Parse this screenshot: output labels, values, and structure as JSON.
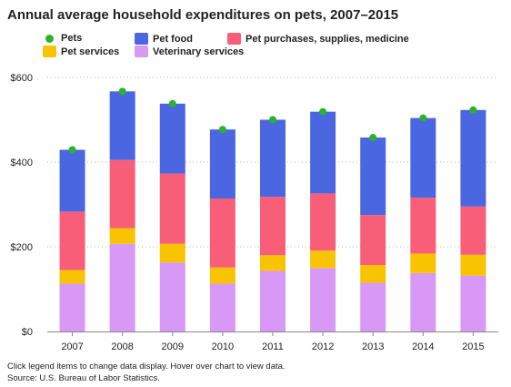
{
  "title": "Annual average household expenditures on pets, 2007–2015",
  "legend": [
    {
      "label": "Pets",
      "color": "#2bb32b",
      "marker": "dot"
    },
    {
      "label": "Pet food",
      "color": "#4a66e0",
      "marker": "square"
    },
    {
      "label": "Pet purchases, supplies, medicine",
      "color": "#f95e78",
      "marker": "square"
    },
    {
      "label": "Pet services",
      "color": "#f8c300",
      "marker": "square"
    },
    {
      "label": "Veterinary services",
      "color": "#d898f5",
      "marker": "square"
    }
  ],
  "footnotes": {
    "instructions": "Click legend items to change data display. Hover over chart to view data.",
    "source": "Source: U.S. Bureau of Labor Statistics."
  },
  "chart_data": {
    "type": "bar",
    "stacked": true,
    "categories": [
      "2007",
      "2008",
      "2009",
      "2010",
      "2011",
      "2012",
      "2013",
      "2014",
      "2015"
    ],
    "series": [
      {
        "name": "Veterinary services",
        "color": "#d898f5",
        "values": [
          113,
          207,
          163,
          113,
          143,
          150,
          115,
          138,
          132
        ]
      },
      {
        "name": "Pet services",
        "color": "#f8c300",
        "values": [
          32,
          37,
          44,
          38,
          37,
          41,
          42,
          46,
          49
        ]
      },
      {
        "name": "Pet purchases, supplies, medicine",
        "color": "#f95e78",
        "values": [
          138,
          161,
          166,
          163,
          138,
          135,
          118,
          132,
          114
        ]
      },
      {
        "name": "Pet food",
        "color": "#4a66e0",
        "values": [
          146,
          162,
          165,
          163,
          182,
          193,
          183,
          188,
          228
        ]
      }
    ],
    "line_series": {
      "name": "Pets",
      "color": "#2bb32b",
      "values": [
        429,
        567,
        538,
        477,
        500,
        519,
        458,
        504,
        523
      ]
    },
    "y_tick_labels": [
      "$0",
      "$200",
      "$400",
      "$600"
    ],
    "ylim": [
      0,
      600
    ],
    "grid": true
  }
}
